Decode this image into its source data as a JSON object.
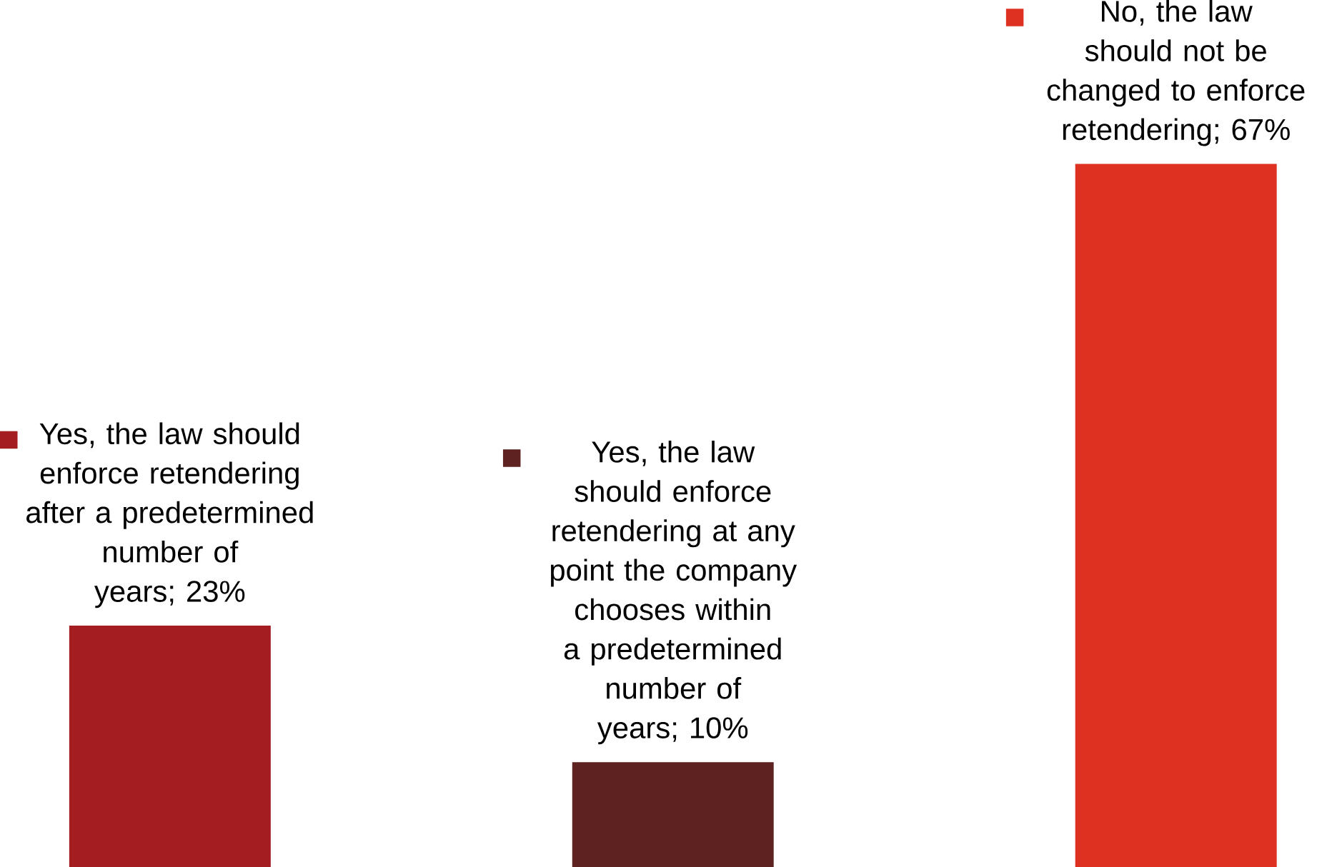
{
  "chart_data": {
    "type": "bar",
    "categories": [
      null,
      null,
      null
    ],
    "values": [
      23,
      10,
      67
    ],
    "colors": [
      "#a31d21",
      "#5e2220",
      "#de3121"
    ],
    "value_labels": [
      "Yes, the law should enforce retendering after a predetermined number of years; 23%",
      "Yes, the law should enforce retendering at any point the company chooses within a predetermined number of years; 10%",
      "No, the law should not be changed to enforce retendering; 67%"
    ],
    "data_labels": true
  }
}
